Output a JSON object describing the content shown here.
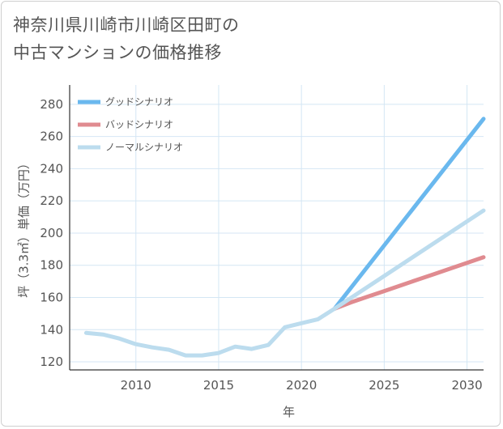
{
  "title": {
    "line1": "神奈川県川崎市川崎区田町の",
    "line2": "中古マンションの価格推移"
  },
  "chart_data": {
    "type": "line",
    "title": "神奈川県川崎市川崎区田町の中古マンションの価格推移",
    "xlabel": "年",
    "ylabel": "坪（3.3㎡）単価（万円）",
    "xlim": [
      2006,
      2031
    ],
    "ylim": [
      115,
      292
    ],
    "xticks": [
      2010,
      2015,
      2020,
      2025,
      2030
    ],
    "yticks": [
      120,
      140,
      160,
      180,
      200,
      220,
      240,
      260,
      280
    ],
    "grid": true,
    "legend_position": "top-left",
    "series": [
      {
        "name": "グッドシナリオ",
        "color": "#6ab8ee",
        "x": [
          2022,
          2031
        ],
        "values": [
          153,
          271
        ]
      },
      {
        "name": "バッドシナリオ",
        "color": "#e08b90",
        "x": [
          2022,
          2023,
          2024,
          2025,
          2026,
          2027,
          2028,
          2029,
          2030,
          2031
        ],
        "values": [
          153,
          157,
          160.5,
          164,
          167.5,
          171,
          174.5,
          178,
          181.5,
          185
        ]
      },
      {
        "name": "ノーマルシナリオ",
        "color": "#bcdcee",
        "x": [
          2007,
          2008,
          2009,
          2010,
          2011,
          2012,
          2013,
          2014,
          2015,
          2016,
          2017,
          2018,
          2019,
          2020,
          2021,
          2022,
          2031
        ],
        "values": [
          138,
          137,
          134.5,
          131,
          129,
          127.5,
          124,
          124,
          125.5,
          129.5,
          128,
          130.5,
          141.5,
          144,
          146.5,
          153,
          214
        ]
      }
    ]
  }
}
